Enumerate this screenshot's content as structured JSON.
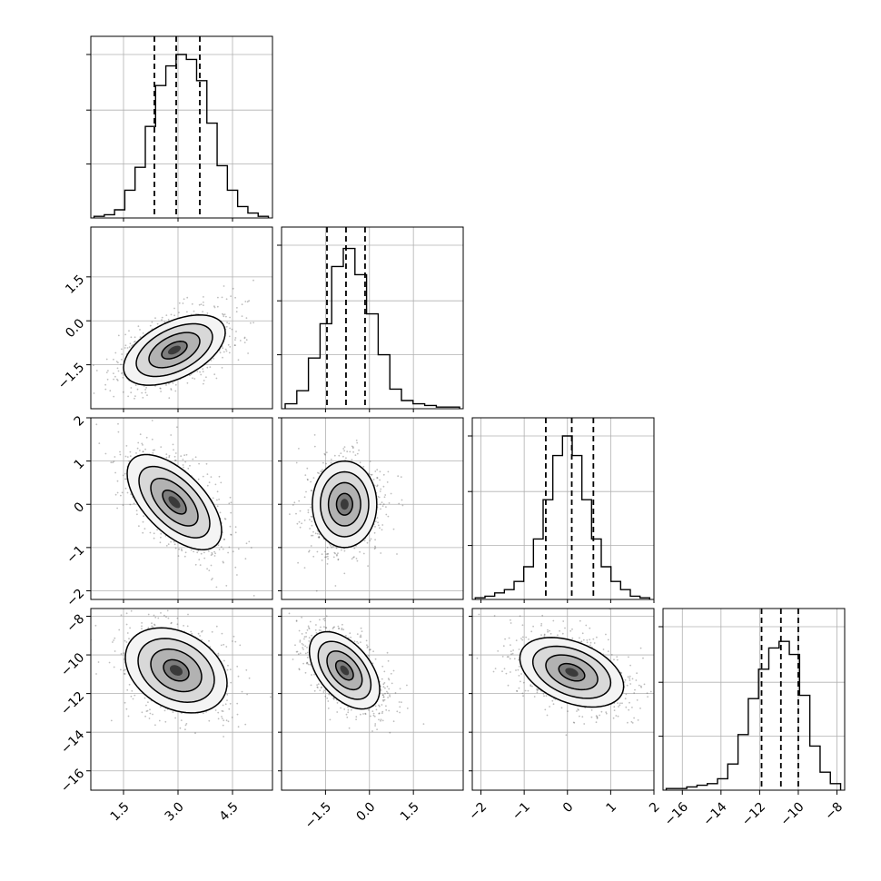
{
  "chart_data": {
    "type": "corner",
    "title": "",
    "n_parameters": 4,
    "grid": true,
    "parameters": [
      {
        "range": [
          0.6,
          5.6
        ],
        "ticks": [
          1.5,
          3.0,
          4.5
        ],
        "tick_labels": [
          "1.5",
          "3.0",
          "4.5"
        ],
        "quantiles": [
          2.35,
          2.95,
          3.6
        ]
      },
      {
        "range": [
          -3.0,
          3.2
        ],
        "ticks": [
          -1.5,
          0.0,
          1.5
        ],
        "tick_labels": [
          "−1.5",
          "0.0",
          "1.5"
        ],
        "quantiles": [
          -1.45,
          -0.8,
          -0.15
        ]
      },
      {
        "range": [
          -2.2,
          2.0
        ],
        "ticks": [
          -2,
          -1,
          0,
          1,
          2
        ],
        "tick_labels": [
          "−2",
          "−1",
          "0",
          "1",
          "2"
        ],
        "quantiles": [
          -0.5,
          0.1,
          0.6
        ]
      },
      {
        "range": [
          -17.0,
          -7.6
        ],
        "ticks": [
          -16,
          -14,
          -12,
          -10,
          -8
        ],
        "tick_labels": [
          "−16",
          "−14",
          "−12",
          "−10",
          "−8"
        ],
        "quantiles": [
          -11.9,
          -10.9,
          -10.0
        ]
      }
    ],
    "histograms": [
      {
        "parameter": 0,
        "values": [
          0.01,
          0.02,
          0.05,
          0.17,
          0.31,
          0.56,
          0.81,
          0.93,
          1.0,
          0.97,
          0.84,
          0.58,
          0.32,
          0.17,
          0.07,
          0.03,
          0.01
        ]
      },
      {
        "parameter": 1,
        "values": [
          0.03,
          0.11,
          0.31,
          0.52,
          0.87,
          0.98,
          0.82,
          0.58,
          0.33,
          0.12,
          0.05,
          0.03,
          0.02,
          0.01,
          0.01
        ]
      },
      {
        "parameter": 2,
        "values": [
          0.01,
          0.02,
          0.04,
          0.06,
          0.11,
          0.2,
          0.37,
          0.61,
          0.88,
          1.0,
          0.88,
          0.61,
          0.37,
          0.2,
          0.11,
          0.06,
          0.02,
          0.01
        ]
      },
      {
        "parameter": 3,
        "values": [
          0.01,
          0.01,
          0.02,
          0.03,
          0.04,
          0.07,
          0.16,
          0.34,
          0.56,
          0.74,
          0.87,
          0.91,
          0.83,
          0.58,
          0.27,
          0.11,
          0.04
        ]
      }
    ],
    "pairs": [
      {
        "x": 0,
        "y": 1,
        "mean": [
          2.9,
          -1.0
        ],
        "std": [
          0.7,
          0.6
        ],
        "corr": 0.5
      },
      {
        "x": 0,
        "y": 2,
        "mean": [
          2.9,
          0.05
        ],
        "std": [
          0.65,
          0.55
        ],
        "corr": -0.6
      },
      {
        "x": 1,
        "y": 2,
        "mean": [
          -0.85,
          0.0
        ],
        "std": [
          0.55,
          0.5
        ],
        "corr": 0.0
      },
      {
        "x": 0,
        "y": 3,
        "mean": [
          2.95,
          -10.8
        ],
        "std": [
          0.7,
          1.1
        ],
        "corr": -0.3
      },
      {
        "x": 1,
        "y": 3,
        "mean": [
          -0.85,
          -10.8
        ],
        "std": [
          0.6,
          1.0
        ],
        "corr": -0.5
      },
      {
        "x": 2,
        "y": 3,
        "mean": [
          0.1,
          -10.9
        ],
        "std": [
          0.6,
          0.9
        ],
        "corr": -0.4
      }
    ],
    "contour_levels_sigma": [
      0.5,
      1.0,
      1.5,
      2.0
    ]
  }
}
